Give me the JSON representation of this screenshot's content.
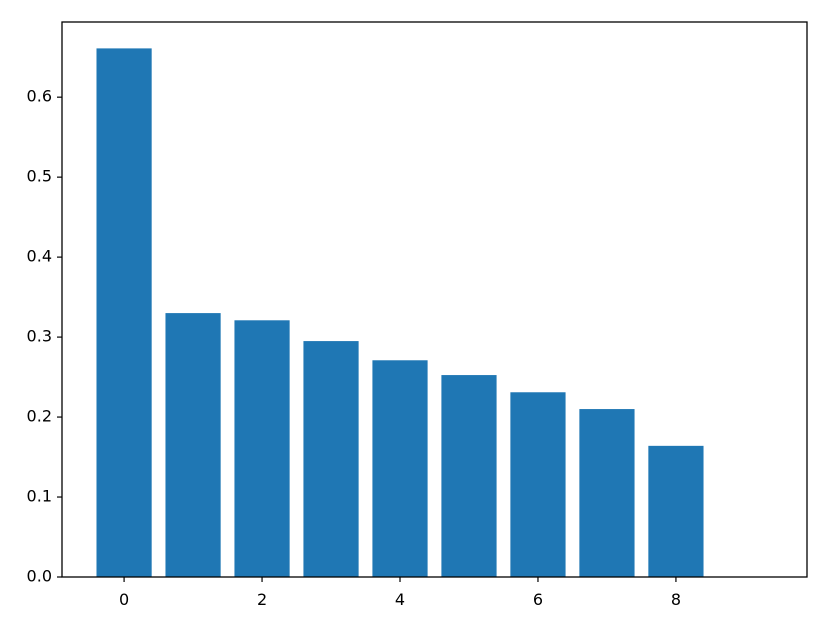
{
  "chart_data": {
    "type": "bar",
    "x": [
      0,
      1,
      2,
      3,
      4,
      5,
      6,
      7,
      8
    ],
    "values": [
      0.661,
      0.33,
      0.321,
      0.295,
      0.271,
      0.2525,
      0.231,
      0.21,
      0.164
    ],
    "color": "#1f77b4",
    "xlim": [
      -0.9,
      9.9
    ],
    "xticks": [
      0,
      2,
      4,
      6,
      8
    ],
    "ylim": [
      0,
      0.694
    ],
    "yticks": [
      {
        "value": 0,
        "label": "0.0"
      },
      0.1,
      0.2,
      0.3,
      0.4,
      0.5,
      0.6
    ]
  }
}
